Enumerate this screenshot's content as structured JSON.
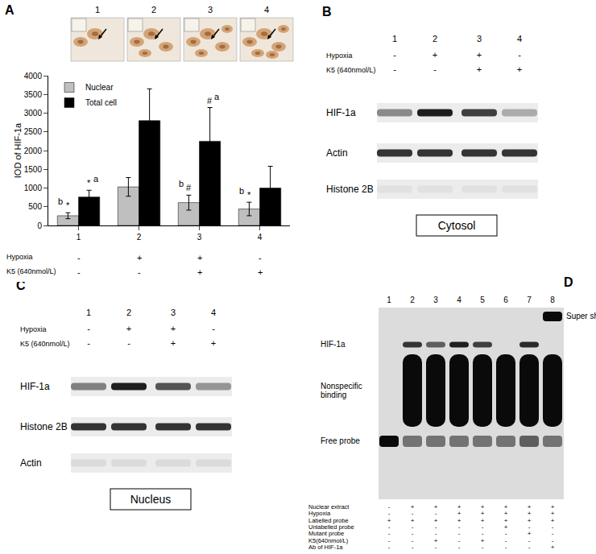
{
  "panel_labels": [
    "A",
    "B",
    "C",
    "D"
  ],
  "micrographs": {
    "labels": [
      "1",
      "2",
      "3",
      "4"
    ]
  },
  "chart_data": {
    "type": "bar",
    "categories": [
      "1",
      "2",
      "3",
      "4"
    ],
    "y_label": "IOD of HIF-1a",
    "ylim": [
      0,
      4000
    ],
    "yticks": [
      0,
      500,
      1000,
      1500,
      2000,
      2500,
      3000,
      3500,
      4000
    ],
    "grid": false,
    "legend": "top-left",
    "series": [
      {
        "name": "Nuclear",
        "color": "#bfbfbf",
        "values": [
          260,
          1030,
          610,
          440
        ],
        "errors": [
          80,
          250,
          200,
          180
        ],
        "sig_symbols": [
          "*",
          null,
          "#",
          "*"
        ],
        "sig_letters": [
          "b",
          null,
          "b",
          "b"
        ]
      },
      {
        "name": "Total cell",
        "color": "#000000",
        "values": [
          760,
          2800,
          2250,
          1000
        ],
        "errors": [
          180,
          850,
          900,
          580
        ],
        "sig_symbols": [
          "*",
          null,
          "#",
          null
        ],
        "sig_letters": [
          "a",
          null,
          "a",
          null
        ]
      }
    ],
    "conditions": [
      {
        "label": "Hypoxia",
        "signs": [
          "-",
          "+",
          "+",
          "-"
        ]
      },
      {
        "label": "K5 (640nmol/L)",
        "signs": [
          "-",
          "-",
          "+",
          "+"
        ]
      }
    ]
  },
  "blots": [
    {
      "panel": "B",
      "lanes": [
        "1",
        "2",
        "3",
        "4"
      ],
      "conditions": [
        {
          "label": "Hypoxia",
          "signs": [
            "-",
            "+",
            "+",
            "-"
          ]
        },
        {
          "label": "K5 (640nmol/L)",
          "signs": [
            "-",
            "-",
            "+",
            "+"
          ]
        }
      ],
      "bands": [
        {
          "label": "HIF-1a",
          "intensity": [
            0.45,
            0.95,
            0.8,
            0.3
          ]
        },
        {
          "label": "Actin",
          "intensity": [
            0.85,
            0.85,
            0.85,
            0.85
          ]
        },
        {
          "label": "Histone 2B",
          "intensity": [
            0.05,
            0.05,
            0.05,
            0.05
          ]
        }
      ],
      "fraction": "Cytosol"
    },
    {
      "panel": "C",
      "lanes": [
        "1",
        "2",
        "3",
        "4"
      ],
      "conditions": [
        {
          "label": "Hypoxia",
          "signs": [
            "-",
            "+",
            "+",
            "-"
          ]
        },
        {
          "label": "K5 (640nmol/L)",
          "signs": [
            "-",
            "-",
            "+",
            "+"
          ]
        }
      ],
      "bands": [
        {
          "label": "HIF-1a",
          "intensity": [
            0.5,
            0.95,
            0.7,
            0.4
          ]
        },
        {
          "label": "Histone 2B",
          "intensity": [
            0.85,
            0.85,
            0.85,
            0.85
          ]
        },
        {
          "label": "Actin",
          "intensity": [
            0.08,
            0.08,
            0.08,
            0.08
          ]
        }
      ],
      "fraction": "Nucleus"
    }
  ],
  "emsa": {
    "panel": "D",
    "lanes": [
      "1",
      "2",
      "3",
      "4",
      "5",
      "6",
      "7",
      "8"
    ],
    "bands": [
      {
        "label": "Super shift",
        "intensity": [
          0,
          0,
          0,
          0,
          0,
          0,
          0,
          1
        ]
      },
      {
        "label": "HIF-1a",
        "intensity": [
          0,
          0.8,
          0.6,
          0.9,
          0.75,
          0,
          0.85,
          0
        ]
      },
      {
        "label": "Nonspecific binding",
        "intensity": [
          0,
          1,
          1,
          1,
          1,
          1,
          1,
          1
        ]
      },
      {
        "label": "Free probe",
        "intensity": [
          1,
          0.5,
          0.5,
          0.5,
          0.5,
          0.5,
          0.6,
          0.5
        ]
      }
    ],
    "conditions": [
      {
        "label": "Nuclear extract",
        "signs": [
          "-",
          "+",
          "+",
          "+",
          "+",
          "+",
          "+",
          "+"
        ]
      },
      {
        "label": "Hypoxia",
        "signs": [
          "-",
          "-",
          "-",
          "+",
          "+",
          "+",
          "+",
          "+"
        ]
      },
      {
        "label": "Labelled probe",
        "signs": [
          "+",
          "+",
          "+",
          "+",
          "+",
          "+",
          "+",
          "+"
        ]
      },
      {
        "label": "Unlabelled probe",
        "signs": [
          "-",
          "-",
          "-",
          "-",
          "-",
          "+",
          "-",
          "-"
        ]
      },
      {
        "label": "Mutant probe",
        "signs": [
          "-",
          "-",
          "-",
          "-",
          "-",
          "-",
          "+",
          "-"
        ]
      },
      {
        "label": "K5(640nmol/L)",
        "signs": [
          "-",
          "-",
          "+",
          "-",
          "+",
          "-",
          "-",
          "-"
        ]
      },
      {
        "label": "Ab of HIF-1a",
        "signs": [
          "-",
          "-",
          "-",
          "-",
          "-",
          "-",
          "-",
          "+"
        ]
      }
    ]
  }
}
